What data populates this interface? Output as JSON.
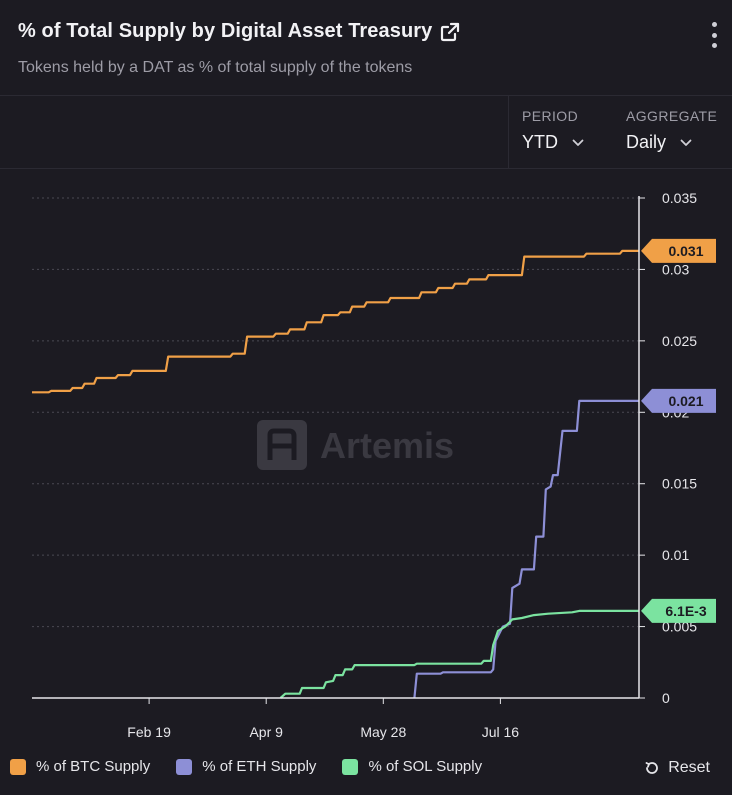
{
  "header": {
    "title": "% of Total Supply by Digital Asset Treasury",
    "subtitle": "Tokens held by a DAT as % of total supply of the tokens"
  },
  "controls": {
    "period_label": "PERIOD",
    "period_value": "YTD",
    "aggregate_label": "AGGREGATE",
    "aggregate_value": "Daily"
  },
  "watermark": "Artemis",
  "legend_reset": "Reset",
  "colors": {
    "btc": "#f0a047",
    "eth": "#8d8fd6",
    "sol": "#7be3a0",
    "background": "#1c1b22"
  },
  "chart_data": {
    "type": "line",
    "x_axis_type": "date",
    "xlim": [
      "2025-01-01",
      "2025-09-12"
    ],
    "ylim": [
      0,
      0.035
    ],
    "x_ticks": [
      {
        "date": "2025-02-19",
        "label": "Feb 19"
      },
      {
        "date": "2025-04-09",
        "label": "Apr 9"
      },
      {
        "date": "2025-05-28",
        "label": "May 28"
      },
      {
        "date": "2025-07-16",
        "label": "Jul 16"
      }
    ],
    "y_ticks": [
      {
        "value": 0,
        "label": "0"
      },
      {
        "value": 0.005,
        "label": "0.005"
      },
      {
        "value": 0.01,
        "label": "0.01"
      },
      {
        "value": 0.015,
        "label": "0.015"
      },
      {
        "value": 0.02,
        "label": "0.02"
      },
      {
        "value": 0.025,
        "label": "0.025"
      },
      {
        "value": 0.03,
        "label": "0.03"
      },
      {
        "value": 0.035,
        "label": "0.035"
      }
    ],
    "grid": true,
    "legend_position": "bottom-left",
    "series": [
      {
        "name": "% of BTC Supply",
        "last_label": "0.031",
        "points": [
          [
            "2025-01-01",
            0.0214
          ],
          [
            "2025-01-08",
            0.0214
          ],
          [
            "2025-01-09",
            0.0215
          ],
          [
            "2025-01-17",
            0.0215
          ],
          [
            "2025-01-18",
            0.0217
          ],
          [
            "2025-01-22",
            0.0217
          ],
          [
            "2025-01-23",
            0.022
          ],
          [
            "2025-01-27",
            0.022
          ],
          [
            "2025-01-28",
            0.0224
          ],
          [
            "2025-02-05",
            0.0224
          ],
          [
            "2025-02-06",
            0.0226
          ],
          [
            "2025-02-11",
            0.0226
          ],
          [
            "2025-02-12",
            0.0229
          ],
          [
            "2025-02-26",
            0.0229
          ],
          [
            "2025-02-27",
            0.0239
          ],
          [
            "2025-03-25",
            0.0239
          ],
          [
            "2025-03-26",
            0.0241
          ],
          [
            "2025-03-31",
            0.0241
          ],
          [
            "2025-04-01",
            0.0253
          ],
          [
            "2025-04-12",
            0.0253
          ],
          [
            "2025-04-13",
            0.0255
          ],
          [
            "2025-04-18",
            0.0255
          ],
          [
            "2025-04-19",
            0.0258
          ],
          [
            "2025-04-25",
            0.0258
          ],
          [
            "2025-04-26",
            0.0263
          ],
          [
            "2025-05-02",
            0.0263
          ],
          [
            "2025-05-03",
            0.0268
          ],
          [
            "2025-05-09",
            0.0268
          ],
          [
            "2025-05-10",
            0.027
          ],
          [
            "2025-05-14",
            0.027
          ],
          [
            "2025-05-15",
            0.0274
          ],
          [
            "2025-05-20",
            0.0274
          ],
          [
            "2025-05-21",
            0.0277
          ],
          [
            "2025-05-30",
            0.0277
          ],
          [
            "2025-05-31",
            0.028
          ],
          [
            "2025-06-12",
            0.028
          ],
          [
            "2025-06-13",
            0.0284
          ],
          [
            "2025-06-19",
            0.0284
          ],
          [
            "2025-06-20",
            0.0287
          ],
          [
            "2025-06-26",
            0.0287
          ],
          [
            "2025-06-27",
            0.029
          ],
          [
            "2025-07-02",
            0.029
          ],
          [
            "2025-07-03",
            0.0293
          ],
          [
            "2025-07-10",
            0.0293
          ],
          [
            "2025-07-11",
            0.0296
          ],
          [
            "2025-07-25",
            0.0296
          ],
          [
            "2025-07-26",
            0.0309
          ],
          [
            "2025-08-20",
            0.0309
          ],
          [
            "2025-08-21",
            0.0311
          ],
          [
            "2025-09-04",
            0.0311
          ],
          [
            "2025-09-05",
            0.0313
          ],
          [
            "2025-09-12",
            0.0313
          ]
        ]
      },
      {
        "name": "% of ETH Supply",
        "last_label": "0.021",
        "points": [
          [
            "2025-06-10",
            0
          ],
          [
            "2025-06-11",
            0.0017
          ],
          [
            "2025-06-21",
            0.0017
          ],
          [
            "2025-06-22",
            0.0018
          ],
          [
            "2025-07-12",
            0.0018
          ],
          [
            "2025-07-13",
            0.002
          ],
          [
            "2025-07-14",
            0.004
          ],
          [
            "2025-07-17",
            0.005
          ],
          [
            "2025-07-20",
            0.0052
          ],
          [
            "2025-07-21",
            0.0077
          ],
          [
            "2025-07-24",
            0.008
          ],
          [
            "2025-07-25",
            0.009
          ],
          [
            "2025-07-30",
            0.009
          ],
          [
            "2025-07-31",
            0.0113
          ],
          [
            "2025-08-03",
            0.0113
          ],
          [
            "2025-08-04",
            0.0146
          ],
          [
            "2025-08-06",
            0.0148
          ],
          [
            "2025-08-07",
            0.0156
          ],
          [
            "2025-08-09",
            0.0156
          ],
          [
            "2025-08-11",
            0.0187
          ],
          [
            "2025-08-17",
            0.0187
          ],
          [
            "2025-08-18",
            0.0208
          ],
          [
            "2025-09-12",
            0.0208
          ]
        ]
      },
      {
        "name": "% of SOL Supply",
        "last_label": "6.1E-3",
        "points": [
          [
            "2025-04-15",
            0
          ],
          [
            "2025-04-17",
            0.0003
          ],
          [
            "2025-04-23",
            0.0003
          ],
          [
            "2025-04-24",
            0.0007
          ],
          [
            "2025-05-03",
            0.0007
          ],
          [
            "2025-05-04",
            0.0011
          ],
          [
            "2025-05-07",
            0.0012
          ],
          [
            "2025-05-08",
            0.0016
          ],
          [
            "2025-05-11",
            0.0016
          ],
          [
            "2025-05-12",
            0.002
          ],
          [
            "2025-05-15",
            0.002
          ],
          [
            "2025-05-16",
            0.0023
          ],
          [
            "2025-06-10",
            0.0023
          ],
          [
            "2025-06-11",
            0.0024
          ],
          [
            "2025-07-08",
            0.0024
          ],
          [
            "2025-07-09",
            0.0026
          ],
          [
            "2025-07-12",
            0.0026
          ],
          [
            "2025-07-13",
            0.0037
          ],
          [
            "2025-07-15",
            0.0047
          ],
          [
            "2025-07-18",
            0.005
          ],
          [
            "2025-07-21",
            0.0055
          ],
          [
            "2025-07-25",
            0.0056
          ],
          [
            "2025-07-30",
            0.0058
          ],
          [
            "2025-08-05",
            0.0059
          ],
          [
            "2025-08-15",
            0.006
          ],
          [
            "2025-08-18",
            0.0061
          ],
          [
            "2025-09-12",
            0.0061
          ]
        ]
      }
    ]
  }
}
